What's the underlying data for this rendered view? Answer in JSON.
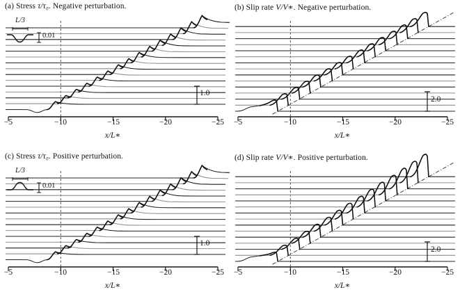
{
  "figure": {
    "type": "four-panel scientific waterfall figure",
    "rows": 2,
    "cols": 2,
    "xlabel": "x/L∗",
    "x_axis_reversed": true
  },
  "chart_data": [
    {
      "type": "line",
      "kind": "stress",
      "panel": "a",
      "title_pre": "(a) Stress ",
      "title_math": "τ/τ₀",
      "title_post": ". Negative perturbation.",
      "xlabel": "x/L∗",
      "xticks": [
        -5,
        -10,
        -15,
        -20,
        -25
      ],
      "xtick_labels": [
        "−5",
        "−10",
        "−15",
        "−20",
        "−25"
      ],
      "x_range": [
        -5,
        -25
      ],
      "axis_reversed": true,
      "dashed_vertical_x": -10,
      "n_traces": 15,
      "trace_front_x": [
        -9.5,
        -10.5,
        -11.5,
        -12.5,
        -13.5,
        -14.5,
        -15.5,
        -16.5,
        -17.5,
        -18.5,
        -19.5,
        -20.5,
        -21.5,
        -22.5,
        -23.5
      ],
      "peak_height_units_start": 0.45,
      "peak_height_units_end": 1.2,
      "stress_drop_units": 0.9,
      "scale_bar": {
        "label": "1.0",
        "value": 1.0
      },
      "inset": {
        "length_label": "L/3",
        "amp_label": "0.01",
        "shape": "dip"
      }
    },
    {
      "type": "line",
      "kind": "slip",
      "panel": "b",
      "title_pre": "(b) Slip rate ",
      "title_math": "V/V∗",
      "title_post": ". Negative perturbation.",
      "xlabel": "x/L∗",
      "xticks": [
        -5,
        -10,
        -15,
        -20,
        -25
      ],
      "xtick_labels": [
        "−5",
        "−10",
        "−15",
        "−20",
        "−25"
      ],
      "x_range": [
        -5,
        -25
      ],
      "axis_reversed": true,
      "dashed_vertical_x": -10,
      "diagonal_front_line": true,
      "n_traces": 15,
      "trace_front_x": [
        -8.8,
        -9.8,
        -10.9,
        -11.9,
        -12.9,
        -14.0,
        -15.0,
        -16.0,
        -17.1,
        -18.1,
        -19.1,
        -20.2,
        -21.2,
        -22.2,
        -23.2
      ],
      "pulse_units_start": 1.9,
      "pulse_units_end": 2.4,
      "scale_bar": {
        "label": "2.0",
        "value": 2.0
      },
      "inset": null
    },
    {
      "type": "line",
      "kind": "stress",
      "panel": "c",
      "title_pre": "(c) Stress ",
      "title_math": "τ/τ₀",
      "title_post": ". Positive perturbation.",
      "xlabel": "x/L∗",
      "xticks": [
        -5,
        -10,
        -15,
        -20,
        -25
      ],
      "xtick_labels": [
        "−5",
        "−10",
        "−15",
        "−20",
        "−25"
      ],
      "x_range": [
        -5,
        -25
      ],
      "axis_reversed": true,
      "dashed_vertical_x": -10,
      "n_traces": 15,
      "trace_front_x": [
        -9.5,
        -10.5,
        -11.5,
        -12.5,
        -13.5,
        -14.5,
        -15.5,
        -16.5,
        -17.5,
        -18.5,
        -19.5,
        -20.5,
        -21.5,
        -22.5,
        -23.5
      ],
      "peak_height_units_start": 0.45,
      "peak_height_units_end": 1.25,
      "stress_drop_units": 0.9,
      "scale_bar": {
        "label": "1.0",
        "value": 1.0
      },
      "inset": {
        "length_label": "L/3",
        "amp_label": "0.01",
        "shape": "bump"
      }
    },
    {
      "type": "line",
      "kind": "slip",
      "panel": "d",
      "title_pre": "(d) Slip rate ",
      "title_math": "V/V∗",
      "title_post": ". Positive perturbation.",
      "xlabel": "x/L∗",
      "xticks": [
        -5,
        -10,
        -15,
        -20,
        -25
      ],
      "xtick_labels": [
        "−5",
        "−10",
        "−15",
        "−20",
        "−25"
      ],
      "x_range": [
        -5,
        -25
      ],
      "axis_reversed": true,
      "dashed_vertical_x": -10,
      "diagonal_front_line": true,
      "n_traces": 15,
      "trace_front_x": [
        -8.8,
        -9.8,
        -10.9,
        -11.9,
        -12.9,
        -14.0,
        -15.0,
        -16.0,
        -17.1,
        -18.1,
        -19.1,
        -20.2,
        -21.2,
        -22.2,
        -23.2
      ],
      "pulse_units_start": 1.55,
      "pulse_units_end": 3.8,
      "scale_bar": {
        "label": "2.0",
        "value": 2.0
      },
      "inset": null
    }
  ],
  "colors": {
    "trace_dark": "#1e1e1e",
    "trace_gray": "#8d8d8d",
    "front_overlay": "#0d0d0d",
    "axis": "#161616",
    "dashed_line": "#3a3a3a",
    "background": "#ffffff"
  }
}
